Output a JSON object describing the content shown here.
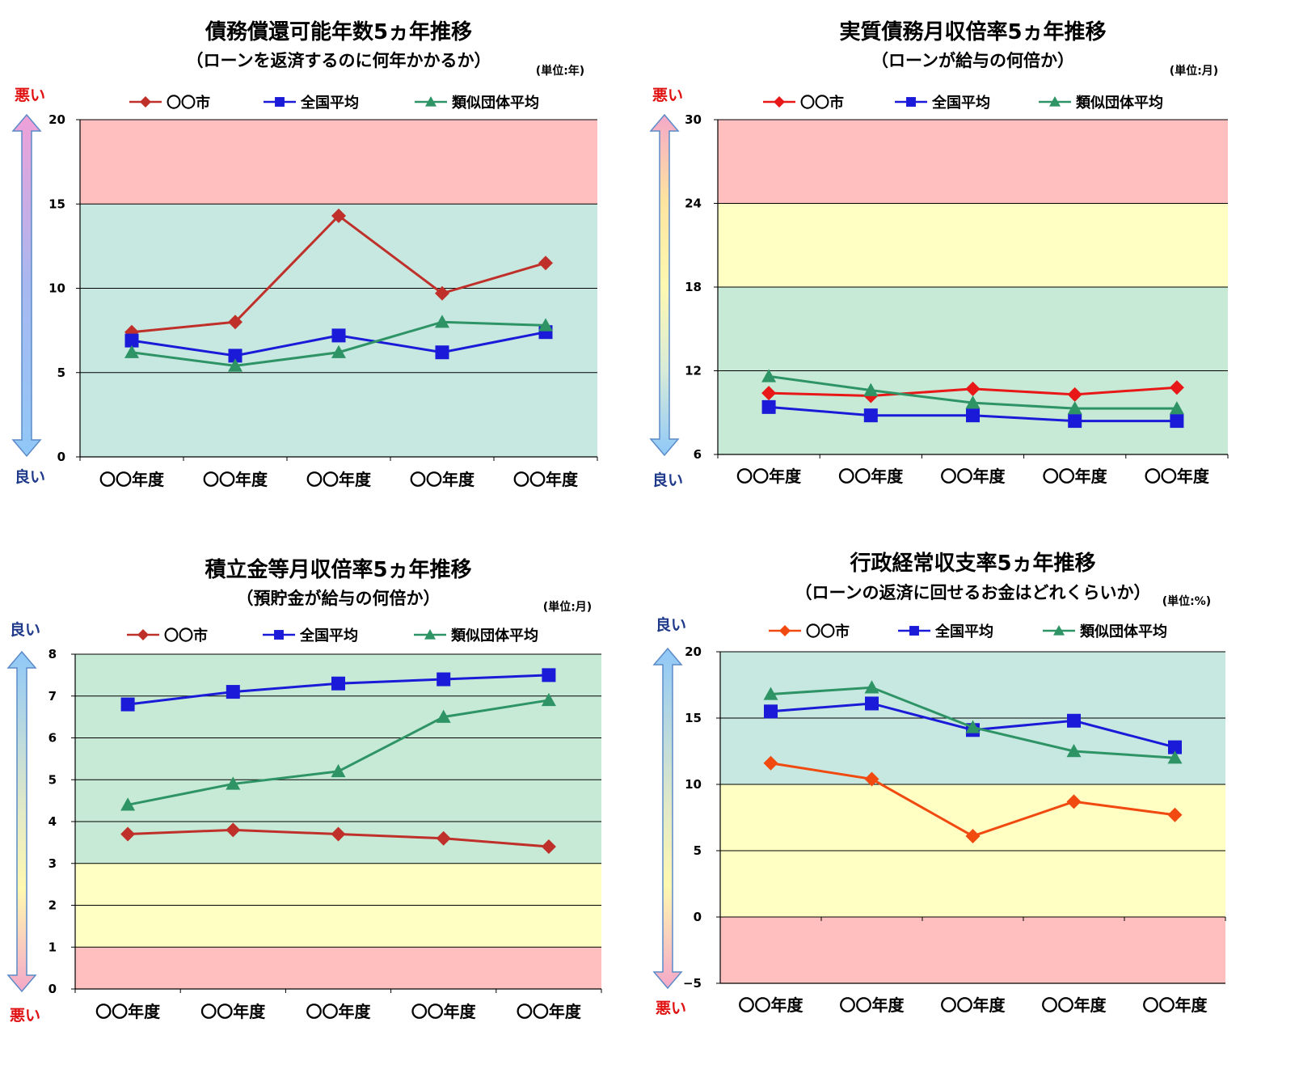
{
  "chart_data": [
    {
      "type": "line",
      "title": "債務償還可能年数5ヵ年推移",
      "subtitle": "（ローンを返済するのに何年かかるか）",
      "unit": "(単位:年)",
      "top_label": "悪い",
      "bottom_label": "良い",
      "arrow_direction": "up",
      "categories": [
        "〇〇年度",
        "〇〇年度",
        "〇〇年度",
        "〇〇年度",
        "〇〇年度"
      ],
      "yticks": [
        "0",
        "5",
        "10",
        "15",
        "20"
      ],
      "ylim": [
        0,
        20
      ],
      "bands": [
        {
          "from": 0,
          "to": 15,
          "color": "#c6e8e0"
        },
        {
          "from": 15,
          "to": 20,
          "color": "#ffbfbf"
        }
      ],
      "grid": true,
      "legend_position": "top",
      "series": [
        {
          "name": "〇〇市",
          "values": [
            7.4,
            8.0,
            14.3,
            9.7,
            11.5
          ],
          "color": "#c0302a",
          "marker": "diamond"
        },
        {
          "name": "全国平均",
          "values": [
            6.9,
            6.0,
            7.2,
            6.2,
            7.4
          ],
          "color": "#1a1ad8",
          "marker": "square"
        },
        {
          "name": "類似団体平均",
          "values": [
            6.2,
            5.4,
            6.2,
            8.0,
            7.8
          ],
          "color": "#2e9466",
          "marker": "triangle"
        }
      ]
    },
    {
      "type": "line",
      "title": "実質債務月収倍率5ヵ年推移",
      "subtitle": "（ローンが給与の何倍か）",
      "unit": "(単位:月)",
      "top_label": "悪い",
      "bottom_label": "良い",
      "arrow_direction": "up",
      "categories": [
        "〇〇年度",
        "〇〇年度",
        "〇〇年度",
        "〇〇年度",
        "〇〇年度"
      ],
      "yticks": [
        "6",
        "12",
        "18",
        "24",
        "30"
      ],
      "ylim": [
        6,
        30
      ],
      "bands": [
        {
          "from": 6,
          "to": 18,
          "color": "#c6ead6"
        },
        {
          "from": 18,
          "to": 24,
          "color": "#ffffc4"
        },
        {
          "from": 24,
          "to": 30,
          "color": "#ffbfbf"
        }
      ],
      "grid": true,
      "legend_position": "top",
      "series": [
        {
          "name": "〇〇市",
          "values": [
            10.4,
            10.2,
            10.7,
            10.3,
            10.8
          ],
          "color": "#e81818",
          "marker": "diamond"
        },
        {
          "name": "全国平均",
          "values": [
            9.4,
            8.8,
            8.8,
            8.4,
            8.4
          ],
          "color": "#1a1ad8",
          "marker": "square"
        },
        {
          "name": "類似団体平均",
          "values": [
            11.6,
            10.6,
            9.7,
            9.3,
            9.3
          ],
          "color": "#2e9466",
          "marker": "triangle"
        }
      ]
    },
    {
      "type": "line",
      "title": "積立金等月収倍率5ヵ年推移",
      "subtitle": "（預貯金が給与の何倍か）",
      "unit": "(単位:月)",
      "top_label": "良い",
      "bottom_label": "悪い",
      "arrow_direction": "down",
      "categories": [
        "〇〇年度",
        "〇〇年度",
        "〇〇年度",
        "〇〇年度",
        "〇〇年度"
      ],
      "yticks": [
        "0",
        "1",
        "2",
        "3",
        "4",
        "5",
        "6",
        "7",
        "8"
      ],
      "ylim": [
        0,
        8
      ],
      "bands": [
        {
          "from": 0,
          "to": 1,
          "color": "#ffbfbf"
        },
        {
          "from": 1,
          "to": 3,
          "color": "#ffffc4"
        },
        {
          "from": 3,
          "to": 8,
          "color": "#c6ead6"
        }
      ],
      "grid": true,
      "legend_position": "top",
      "series": [
        {
          "name": "〇〇市",
          "values": [
            3.7,
            3.8,
            3.7,
            3.6,
            3.4
          ],
          "color": "#c0302a",
          "marker": "diamond"
        },
        {
          "name": "全国平均",
          "values": [
            6.8,
            7.1,
            7.3,
            7.4,
            7.5
          ],
          "color": "#1a1ad8",
          "marker": "square"
        },
        {
          "name": "類似団体平均",
          "values": [
            4.4,
            4.9,
            5.2,
            6.5,
            6.9
          ],
          "color": "#2e9466",
          "marker": "triangle"
        }
      ]
    },
    {
      "type": "line",
      "title": "行政経常収支率5ヵ年推移",
      "subtitle": "（ローンの返済に回せるお金はどれくらいか）",
      "unit": "(単位:%)",
      "top_label": "良い",
      "bottom_label": "悪い",
      "arrow_direction": "down",
      "categories": [
        "〇〇年度",
        "〇〇年度",
        "〇〇年度",
        "〇〇年度",
        "〇〇年度"
      ],
      "yticks": [
        "−5",
        "0",
        "5",
        "10",
        "15",
        "20"
      ],
      "ylim": [
        -5,
        20
      ],
      "bands": [
        {
          "from": -5,
          "to": 0,
          "color": "#ffbfbf"
        },
        {
          "from": 0,
          "to": 10,
          "color": "#ffffc4"
        },
        {
          "from": 10,
          "to": 20,
          "color": "#c6e8e0"
        }
      ],
      "grid": true,
      "legend_position": "top",
      "series": [
        {
          "name": "〇〇市",
          "values": [
            11.6,
            10.4,
            6.1,
            8.7,
            7.7
          ],
          "color": "#f04a10",
          "marker": "diamond"
        },
        {
          "name": "全国平均",
          "values": [
            15.5,
            16.1,
            14.1,
            14.8,
            12.8
          ],
          "color": "#1a1ad8",
          "marker": "square"
        },
        {
          "name": "類似団体平均",
          "values": [
            16.8,
            17.3,
            14.3,
            12.5,
            12.0
          ],
          "color": "#2e9466",
          "marker": "triangle"
        }
      ]
    }
  ]
}
